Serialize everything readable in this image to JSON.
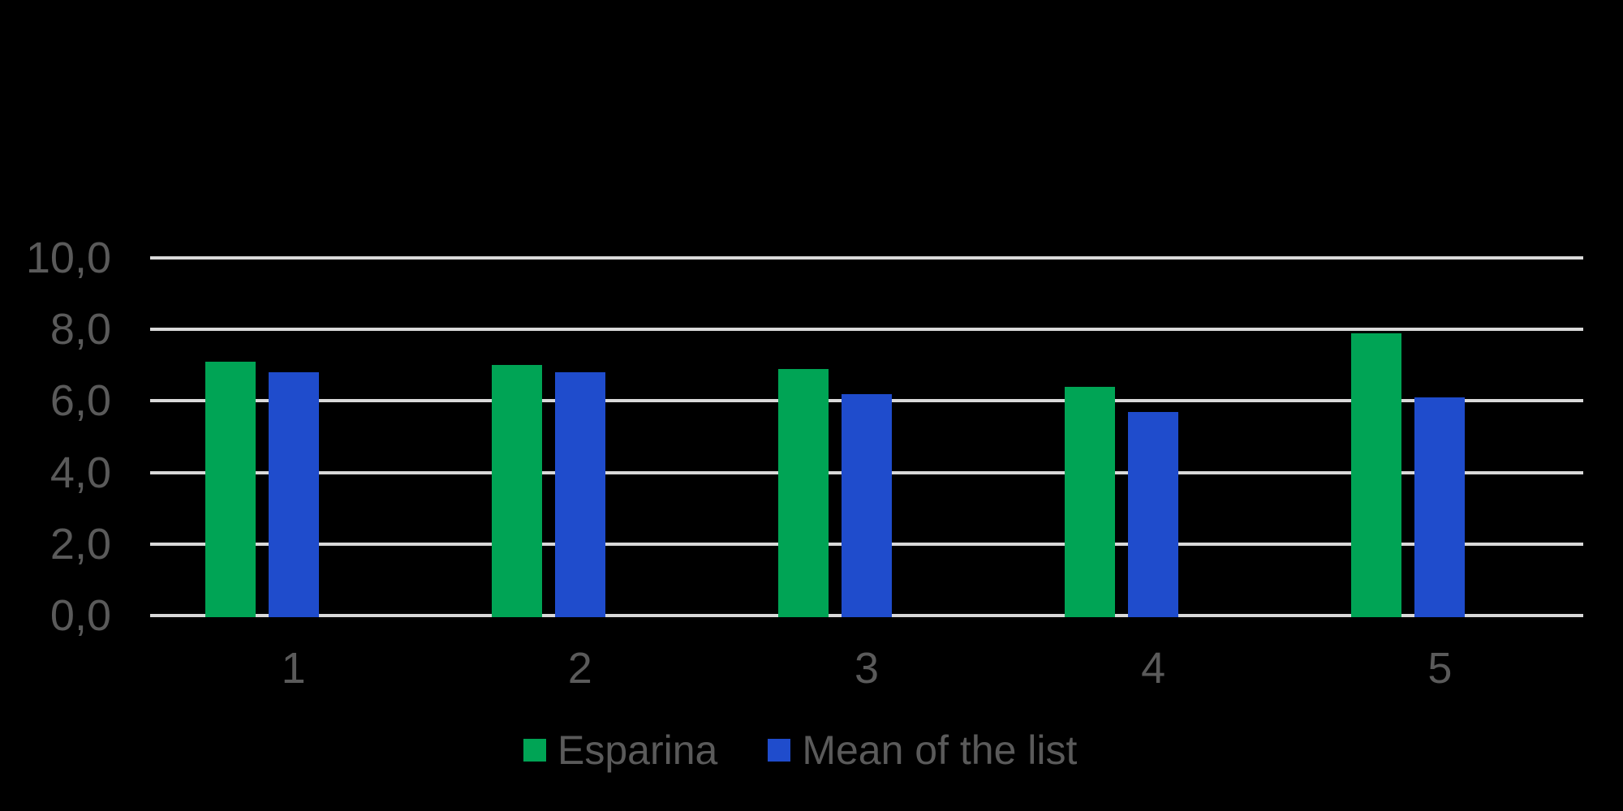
{
  "chart": {
    "background_color": "#000000",
    "grid_color": "#D9D9D9",
    "text_color": "#5A5A5A"
  },
  "chart_data": {
    "type": "bar",
    "categories": [
      "1",
      "2",
      "3",
      "4",
      "5"
    ],
    "series": [
      {
        "name": "Esparina",
        "color": "#00A455",
        "values": [
          7.1,
          7.0,
          6.9,
          6.4,
          7.9
        ]
      },
      {
        "name": "Mean of the list",
        "color": "#1F4CCC",
        "values": [
          6.8,
          6.8,
          6.2,
          5.7,
          6.1
        ]
      }
    ],
    "y_ticks": [
      {
        "value": 0,
        "label": "0,0"
      },
      {
        "value": 2,
        "label": "2,0"
      },
      {
        "value": 4,
        "label": "4,0"
      },
      {
        "value": 6,
        "label": "6,0"
      },
      {
        "value": 8,
        "label": "8,0"
      },
      {
        "value": 10,
        "label": "10,0"
      }
    ],
    "ylim": [
      0,
      10
    ],
    "grid": "horizontal",
    "legend_position": "bottom"
  }
}
